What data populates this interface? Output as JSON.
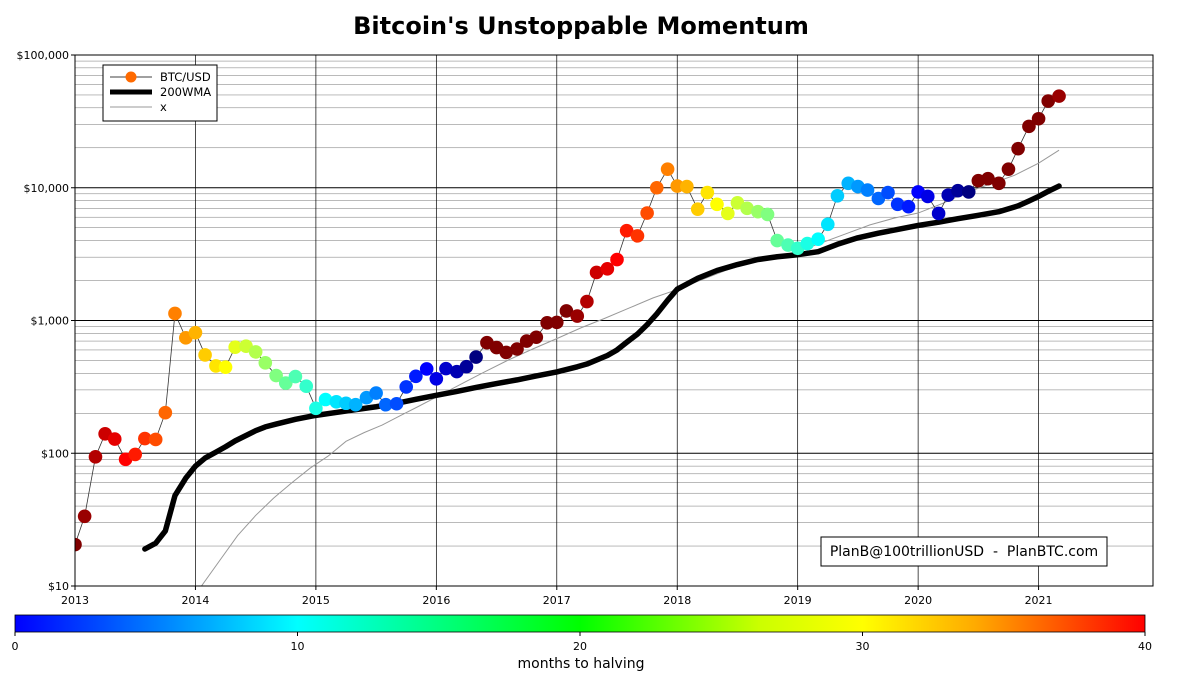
{
  "chart_data": {
    "type": "scatter",
    "title": "Bitcoin's Unstoppable Momentum",
    "y_scale": "log",
    "ylim": [
      10,
      100000
    ],
    "xlim": [
      2013.0,
      2021.95
    ],
    "y_ticks": [
      {
        "value": 10,
        "label": "$10"
      },
      {
        "value": 100,
        "label": "$100"
      },
      {
        "value": 1000,
        "label": "$1,000"
      },
      {
        "value": 10000,
        "label": "$10,000"
      },
      {
        "value": 100000,
        "label": "$100,000"
      }
    ],
    "x_ticks": [
      {
        "value": 2013,
        "label": "2013"
      },
      {
        "value": 2014,
        "label": "2014"
      },
      {
        "value": 2015,
        "label": "2015"
      },
      {
        "value": 2016,
        "label": "2016"
      },
      {
        "value": 2017,
        "label": "2017"
      },
      {
        "value": 2018,
        "label": "2018"
      },
      {
        "value": 2019,
        "label": "2019"
      },
      {
        "value": 2020,
        "label": "2020"
      },
      {
        "value": 2021,
        "label": "2021"
      }
    ],
    "grid": true,
    "legend": {
      "placement": "top-left",
      "entries": [
        {
          "label": "BTC/USD",
          "style": "line-marker",
          "color": "#ff6a00"
        },
        {
          "label": "200WMA",
          "style": "thick-line",
          "color": "#000000"
        },
        {
          "label": "x",
          "style": "thin-line",
          "color": "#999999"
        }
      ]
    },
    "annotation": "PlanB@100trillionUSD  -  PlanBTC.com",
    "colorbar": {
      "label": "months to halving",
      "min": 0,
      "max": 40,
      "ticks": [
        {
          "value": 0,
          "label": "0"
        },
        {
          "value": 10,
          "label": "10"
        },
        {
          "value": 20,
          "label": "20"
        },
        {
          "value": 30,
          "label": "30"
        },
        {
          "value": 40,
          "label": "40"
        }
      ]
    },
    "series": [
      {
        "name": "BTC/USD",
        "color_by": "months to halving",
        "x": [
          2013.0,
          2013.08,
          2013.17,
          2013.25,
          2013.33,
          2013.42,
          2013.5,
          2013.58,
          2013.67,
          2013.75,
          2013.83,
          2013.92,
          2014.0,
          2014.08,
          2014.17,
          2014.25,
          2014.33,
          2014.42,
          2014.5,
          2014.58,
          2014.67,
          2014.75,
          2014.83,
          2014.92,
          2015.0,
          2015.08,
          2015.17,
          2015.25,
          2015.33,
          2015.42,
          2015.5,
          2015.58,
          2015.67,
          2015.75,
          2015.83,
          2015.92,
          2016.0,
          2016.08,
          2016.17,
          2016.25,
          2016.33,
          2016.42,
          2016.5,
          2016.58,
          2016.67,
          2016.75,
          2016.83,
          2016.92,
          2017.0,
          2017.08,
          2017.17,
          2017.25,
          2017.33,
          2017.42,
          2017.5,
          2017.58,
          2017.67,
          2017.75,
          2017.83,
          2017.92,
          2018.0,
          2018.08,
          2018.17,
          2018.25,
          2018.33,
          2018.42,
          2018.5,
          2018.58,
          2018.67,
          2018.75,
          2018.83,
          2018.92,
          2019.0,
          2019.08,
          2019.17,
          2019.25,
          2019.33,
          2019.42,
          2019.5,
          2019.58,
          2019.67,
          2019.75,
          2019.83,
          2019.92,
          2020.0,
          2020.08,
          2020.17,
          2020.25,
          2020.33,
          2020.42,
          2020.5,
          2020.58,
          2020.67,
          2020.75,
          2020.83,
          2020.92,
          2021.0,
          2021.08,
          2021.17
        ],
        "y": [
          20.5,
          33.5,
          94,
          140,
          128,
          90,
          98,
          129,
          127,
          202,
          1130,
          740,
          810,
          550,
          455,
          445,
          630,
          640,
          580,
          480,
          385,
          338,
          378,
          320,
          218,
          254,
          244,
          238,
          232,
          262,
          284,
          232,
          236,
          316,
          380,
          432,
          364,
          434,
          412,
          449,
          530,
          680,
          625,
          575,
          610,
          700,
          748,
          960,
          968,
          1180,
          1080,
          1390,
          2300,
          2450,
          2880,
          4750,
          4340,
          6450,
          10000,
          13800,
          10300,
          10200,
          6900,
          9200,
          7500,
          6400,
          7700,
          7000,
          6600,
          6300,
          4000,
          3700,
          3500,
          3800,
          4100,
          5300,
          8700,
          10800,
          10200,
          9600,
          8300,
          9200,
          7500,
          7200,
          9300,
          8600,
          6400,
          8800,
          9500,
          9300,
          11300,
          11700,
          10800,
          13800,
          19700,
          29000,
          33100,
          45000,
          49000
        ],
        "c": [
          40,
          39,
          38,
          37,
          36,
          35,
          34,
          33,
          32,
          31,
          30,
          29,
          28,
          27,
          26,
          25,
          24,
          23,
          22,
          21,
          20,
          19,
          18,
          17,
          16,
          15,
          14,
          13,
          12,
          11,
          10,
          9,
          8,
          7,
          6,
          5,
          4,
          3,
          2,
          1,
          0,
          48,
          47,
          46,
          45,
          44,
          43,
          42,
          41,
          40,
          39,
          38,
          37,
          36,
          35,
          34,
          33,
          32,
          31,
          30,
          29,
          28,
          27,
          26,
          25,
          24,
          23,
          22,
          21,
          20,
          19,
          18,
          17,
          16,
          15,
          14,
          13,
          12,
          11,
          10,
          9,
          8,
          7,
          6,
          5,
          4,
          3,
          2,
          1,
          0,
          47,
          46,
          45,
          44,
          43,
          42,
          41,
          40,
          39
        ]
      },
      {
        "name": "200WMA",
        "x": [
          2013.58,
          2013.67,
          2013.75,
          2013.83,
          2013.92,
          2014.0,
          2014.08,
          2014.17,
          2014.25,
          2014.33,
          2014.42,
          2014.5,
          2014.58,
          2014.67,
          2014.75,
          2014.83,
          2014.92,
          2015.0,
          2015.17,
          2015.33,
          2015.5,
          2015.67,
          2015.83,
          2016.0,
          2016.17,
          2016.33,
          2016.5,
          2016.67,
          2016.83,
          2017.0,
          2017.17,
          2017.25,
          2017.42,
          2017.5,
          2017.58,
          2017.67,
          2017.75,
          2017.83,
          2017.92,
          2018.0,
          2018.17,
          2018.33,
          2018.5,
          2018.67,
          2018.83,
          2019.0,
          2019.17,
          2019.33,
          2019.5,
          2019.67,
          2019.83,
          2020.0,
          2020.17,
          2020.33,
          2020.5,
          2020.67,
          2020.83,
          2020.92,
          2021.0,
          2021.08,
          2021.17
        ],
        "y": [
          19,
          21,
          26,
          48,
          65,
          80,
          92,
          102,
          112,
          124,
          136,
          148,
          158,
          166,
          173,
          180,
          187,
          193,
          203,
          213,
          224,
          238,
          255,
          273,
          292,
          313,
          335,
          357,
          382,
          410,
          448,
          470,
          545,
          600,
          685,
          790,
          930,
          1120,
          1420,
          1720,
          2080,
          2380,
          2640,
          2880,
          3020,
          3130,
          3300,
          3750,
          4200,
          4550,
          4850,
          5200,
          5500,
          5850,
          6200,
          6600,
          7300,
          7950,
          8600,
          9400,
          10300
        ]
      },
      {
        "name": "x",
        "x": [
          2014.05,
          2014.2,
          2014.35,
          2014.5,
          2014.65,
          2014.8,
          2014.95,
          2015.1,
          2015.25,
          2015.4,
          2015.55,
          2015.7,
          2015.85,
          2016.0,
          2016.2,
          2016.4,
          2016.6,
          2016.8,
          2017.0,
          2017.2,
          2017.4,
          2017.6,
          2017.8,
          2018.0,
          2018.2,
          2018.4,
          2018.6,
          2018.8,
          2019.0,
          2019.2,
          2019.4,
          2019.6,
          2019.8,
          2020.0,
          2020.2,
          2020.4,
          2020.6,
          2020.8,
          2021.0,
          2021.17
        ],
        "y": [
          10,
          15.5,
          24,
          34,
          46,
          60,
          77,
          95,
          123,
          143,
          163,
          192,
          225,
          265,
          330,
          410,
          505,
          610,
          730,
          880,
          1040,
          1240,
          1480,
          1710,
          2020,
          2380,
          2710,
          3000,
          3300,
          3850,
          4500,
          5250,
          5900,
          6450,
          7600,
          9200,
          10700,
          12400,
          15300,
          19200
        ]
      }
    ]
  }
}
